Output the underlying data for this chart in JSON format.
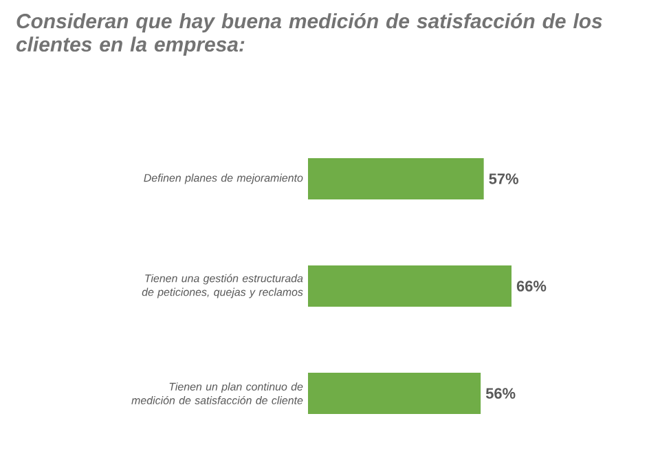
{
  "chart_data": {
    "type": "bar",
    "orientation": "horizontal",
    "title": "Consideran que hay buena medición de satisfacción de los clientes en la empresa:",
    "categories": [
      "Definen planes de mejoramiento",
      "Tienen una gestión estructurada de peticiones, quejas y reclamos",
      "Tienen un plan continuo de medición de satisfacción de cliente"
    ],
    "values": [
      57,
      66,
      56
    ],
    "value_labels": [
      "57%",
      "66%",
      "56%"
    ],
    "color": "#70ad47",
    "tick_labels": "y"
  }
}
